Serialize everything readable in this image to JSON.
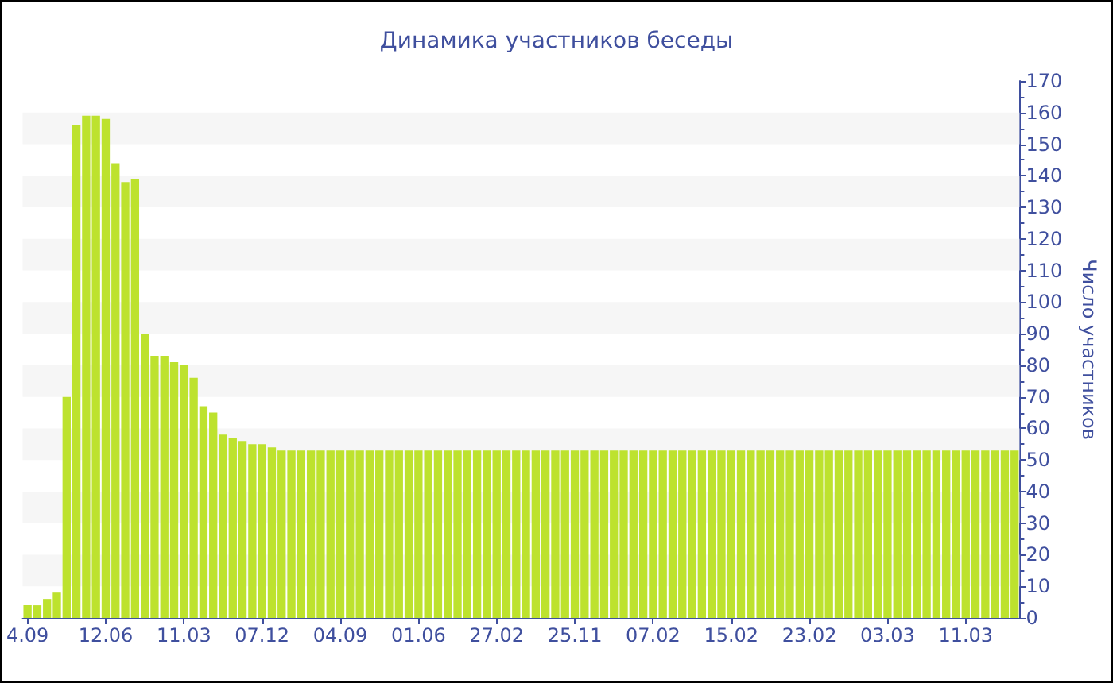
{
  "chart_data": {
    "type": "bar",
    "title": "Динамика участников беседы",
    "ylabel": "Число участников",
    "categories": [
      "4.09",
      null,
      null,
      null,
      null,
      null,
      null,
      null,
      "12.06",
      null,
      null,
      null,
      null,
      null,
      null,
      null,
      "11.03",
      null,
      null,
      null,
      null,
      null,
      null,
      null,
      "07.12",
      null,
      null,
      null,
      null,
      null,
      null,
      null,
      "04.09",
      null,
      null,
      null,
      null,
      null,
      null,
      null,
      "01.06",
      null,
      null,
      null,
      null,
      null,
      null,
      null,
      "27.02",
      null,
      null,
      null,
      null,
      null,
      null,
      null,
      "25.11",
      null,
      null,
      null,
      null,
      null,
      null,
      null,
      "07.02",
      null,
      null,
      null,
      null,
      null,
      null,
      null,
      "15.02",
      null,
      null,
      null,
      null,
      null,
      null,
      null,
      "23.02",
      null,
      null,
      null,
      null,
      null,
      null,
      null,
      "03.03",
      null,
      null,
      null,
      null,
      null,
      null,
      null,
      "11.03",
      null,
      null,
      null,
      null,
      null
    ],
    "values": [
      4,
      4,
      6,
      8,
      70,
      156,
      159,
      159,
      158,
      144,
      138,
      139,
      90,
      83,
      83,
      81,
      80,
      76,
      67,
      65,
      58,
      57,
      56,
      55,
      55,
      54,
      53,
      53,
      53,
      53,
      53,
      53,
      53,
      53,
      53,
      53,
      53,
      53,
      53,
      53,
      53,
      53,
      53,
      53,
      53,
      53,
      53,
      53,
      53,
      53,
      53,
      53,
      53,
      53,
      53,
      53,
      53,
      53,
      53,
      53,
      53,
      53,
      53,
      53,
      53,
      53,
      53,
      53,
      53,
      53,
      53,
      53,
      53,
      53,
      53,
      53,
      53,
      53,
      53,
      53,
      53,
      53,
      53,
      53,
      53,
      53,
      53,
      53,
      53,
      53,
      53,
      53,
      53,
      53,
      53,
      53,
      53,
      53,
      53,
      53,
      53,
      53
    ],
    "color": "#bde22e",
    "ylim": [
      0,
      170
    ],
    "yticks": [
      0,
      10,
      20,
      30,
      40,
      50,
      60,
      70,
      80,
      90,
      100,
      110,
      120,
      130,
      140,
      150,
      160,
      170
    ],
    "bands": [
      {
        "axis": "y",
        "from": 10,
        "to": 20,
        "color": "#f6f6f6"
      },
      {
        "axis": "y",
        "from": 30,
        "to": 40,
        "color": "#f6f6f6"
      },
      {
        "axis": "y",
        "from": 50,
        "to": 60,
        "color": "#f6f6f6"
      },
      {
        "axis": "y",
        "from": 70,
        "to": 80,
        "color": "#f6f6f6"
      },
      {
        "axis": "y",
        "from": 90,
        "to": 100,
        "color": "#f6f6f6"
      },
      {
        "axis": "y",
        "from": 110,
        "to": 120,
        "color": "#f6f6f6"
      },
      {
        "axis": "y",
        "from": 130,
        "to": 140,
        "color": "#f6f6f6"
      },
      {
        "axis": "y",
        "from": 150,
        "to": 160,
        "color": "#f6f6f6"
      }
    ]
  }
}
